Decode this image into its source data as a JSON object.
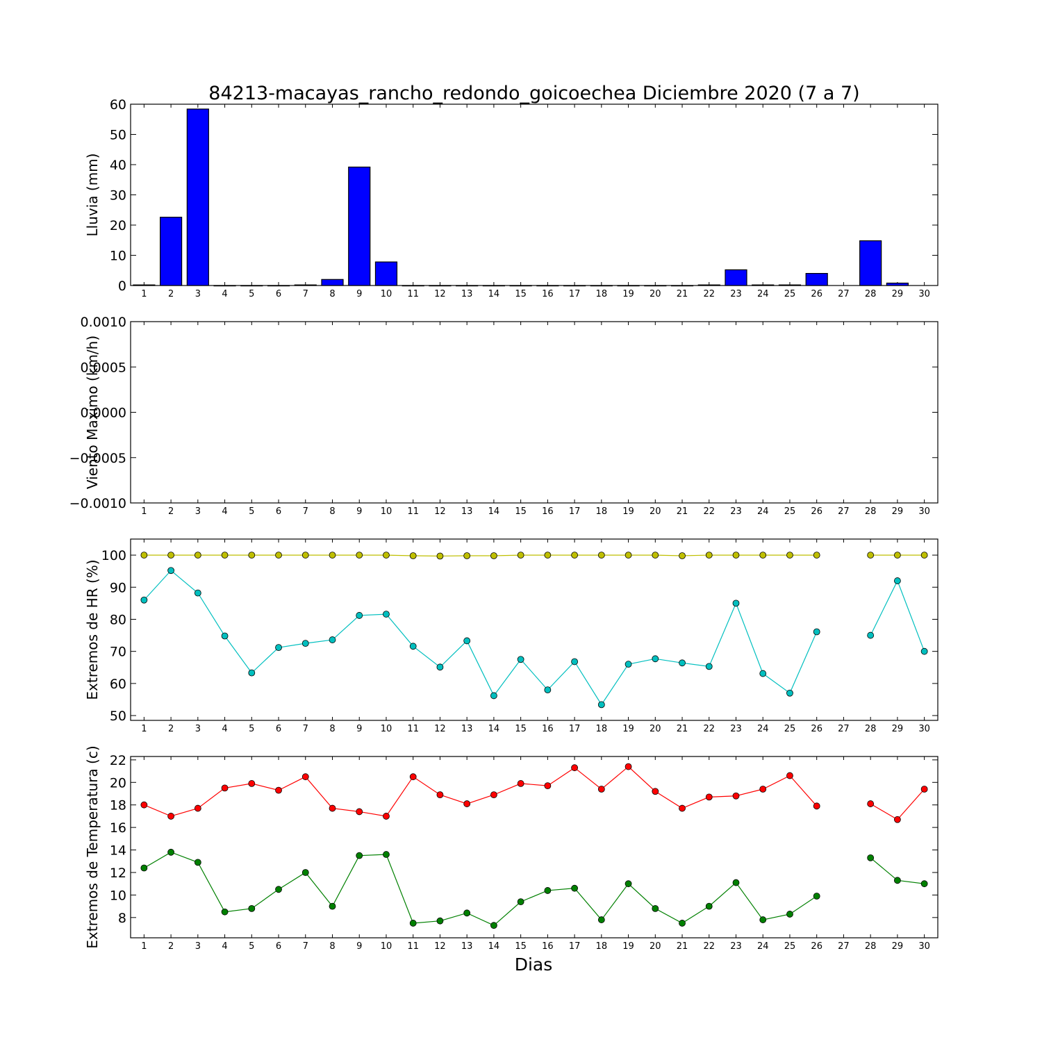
{
  "chart_data": [
    {
      "type": "bar",
      "title": "84213-macayas_rancho_redondo_goicoechea Diciembre 2020  (7 a 7)",
      "ylabel": "Lluvia (mm)",
      "xlabel": "",
      "ylim": [
        0,
        60
      ],
      "yticks": [
        "0",
        "10",
        "20",
        "30",
        "40",
        "50",
        "60"
      ],
      "xticks": [
        1,
        2,
        3,
        4,
        5,
        6,
        7,
        8,
        9,
        10,
        11,
        12,
        13,
        14,
        15,
        16,
        17,
        18,
        19,
        20,
        21,
        22,
        23,
        24,
        25,
        26,
        27,
        28,
        29,
        30
      ],
      "categories": [
        1,
        2,
        3,
        4,
        5,
        6,
        7,
        8,
        9,
        10,
        11,
        12,
        13,
        14,
        15,
        16,
        17,
        18,
        19,
        20,
        21,
        22,
        23,
        24,
        25,
        26,
        28,
        29
      ],
      "series": [
        {
          "color": "#0000ff",
          "values": [
            0.2,
            22.6,
            58.4,
            0,
            0,
            0,
            0.2,
            2.0,
            39.2,
            7.8,
            0,
            0,
            0,
            0,
            0,
            0,
            0,
            0,
            0,
            0,
            0,
            0.2,
            5.2,
            0.2,
            0.2,
            4.0,
            14.8,
            0.8
          ]
        }
      ],
      "grid": false
    },
    {
      "type": "line",
      "title": "",
      "ylabel": "Viento Maximo (km/h)",
      "xlabel": "",
      "ylim": [
        -0.001,
        0.001
      ],
      "yticks": [
        "−0.0010",
        "−0.0005",
        "0.0000",
        "0.0005",
        "0.0010"
      ],
      "xticks": [
        1,
        2,
        3,
        4,
        5,
        6,
        7,
        8,
        9,
        10,
        11,
        12,
        13,
        14,
        15,
        16,
        17,
        18,
        19,
        20,
        21,
        22,
        23,
        24,
        25,
        26,
        27,
        28,
        29,
        30
      ],
      "series": [],
      "grid": false
    },
    {
      "type": "line",
      "title": "",
      "ylabel": "Extremos de HR (%)",
      "xlabel": "",
      "ylim": [
        48.5,
        105
      ],
      "yticks": [
        "50",
        "60",
        "70",
        "80",
        "90",
        "100"
      ],
      "xticks": [
        1,
        2,
        3,
        4,
        5,
        6,
        7,
        8,
        9,
        10,
        11,
        12,
        13,
        14,
        15,
        16,
        17,
        18,
        19,
        20,
        21,
        22,
        23,
        24,
        25,
        26,
        27,
        28,
        29,
        30
      ],
      "x": [
        1,
        2,
        3,
        4,
        5,
        6,
        7,
        8,
        9,
        10,
        11,
        12,
        13,
        14,
        15,
        16,
        17,
        18,
        19,
        20,
        21,
        22,
        23,
        24,
        25,
        26,
        27,
        28,
        29,
        30
      ],
      "series": [
        {
          "color": "#bfbf00",
          "values": [
            100,
            100,
            100,
            100,
            100,
            100,
            100,
            100,
            100,
            100,
            99.8,
            99.7,
            99.8,
            99.8,
            100,
            100,
            100,
            100,
            100,
            100,
            99.8,
            100,
            100,
            100,
            100,
            100,
            null,
            100,
            100,
            100
          ]
        },
        {
          "color": "#00bfbf",
          "values": [
            86,
            95.2,
            88.2,
            74.8,
            63.3,
            71.2,
            72.5,
            73.6,
            81.2,
            81.6,
            71.6,
            65.1,
            73.3,
            56.2,
            67.5,
            58,
            66.8,
            53.4,
            66,
            67.7,
            66.4,
            65.3,
            85,
            63.1,
            57,
            76.1,
            null,
            75,
            92,
            70
          ]
        }
      ],
      "grid": false
    },
    {
      "type": "line",
      "title": "",
      "ylabel": "Extremos de Temperatura (c)",
      "xlabel": "Dias",
      "ylim": [
        6.2,
        22.3
      ],
      "yticks": [
        "8",
        "10",
        "12",
        "14",
        "16",
        "18",
        "20",
        "22"
      ],
      "xticks": [
        1,
        2,
        3,
        4,
        5,
        6,
        7,
        8,
        9,
        10,
        11,
        12,
        13,
        14,
        15,
        16,
        17,
        18,
        19,
        20,
        21,
        22,
        23,
        24,
        25,
        26,
        27,
        28,
        29,
        30
      ],
      "x": [
        1,
        2,
        3,
        4,
        5,
        6,
        7,
        8,
        9,
        10,
        11,
        12,
        13,
        14,
        15,
        16,
        17,
        18,
        19,
        20,
        21,
        22,
        23,
        24,
        25,
        26,
        27,
        28,
        29,
        30
      ],
      "series": [
        {
          "color": "#ff0000",
          "values": [
            18,
            17,
            17.7,
            19.5,
            19.9,
            19.3,
            20.5,
            17.7,
            17.4,
            17,
            20.5,
            18.9,
            18.1,
            18.9,
            19.9,
            19.7,
            21.3,
            19.4,
            21.4,
            19.2,
            17.7,
            18.7,
            18.8,
            19.4,
            20.6,
            17.9,
            null,
            18.1,
            16.7,
            19.4
          ]
        },
        {
          "color": "#008000",
          "values": [
            12.4,
            13.8,
            12.9,
            8.5,
            8.8,
            10.5,
            12,
            9,
            13.5,
            13.6,
            7.5,
            7.7,
            8.4,
            7.3,
            9.4,
            10.4,
            10.6,
            7.8,
            11,
            8.8,
            7.5,
            9,
            11.1,
            7.8,
            8.3,
            9.9,
            null,
            13.3,
            11.3,
            11
          ]
        }
      ],
      "grid": false
    }
  ]
}
